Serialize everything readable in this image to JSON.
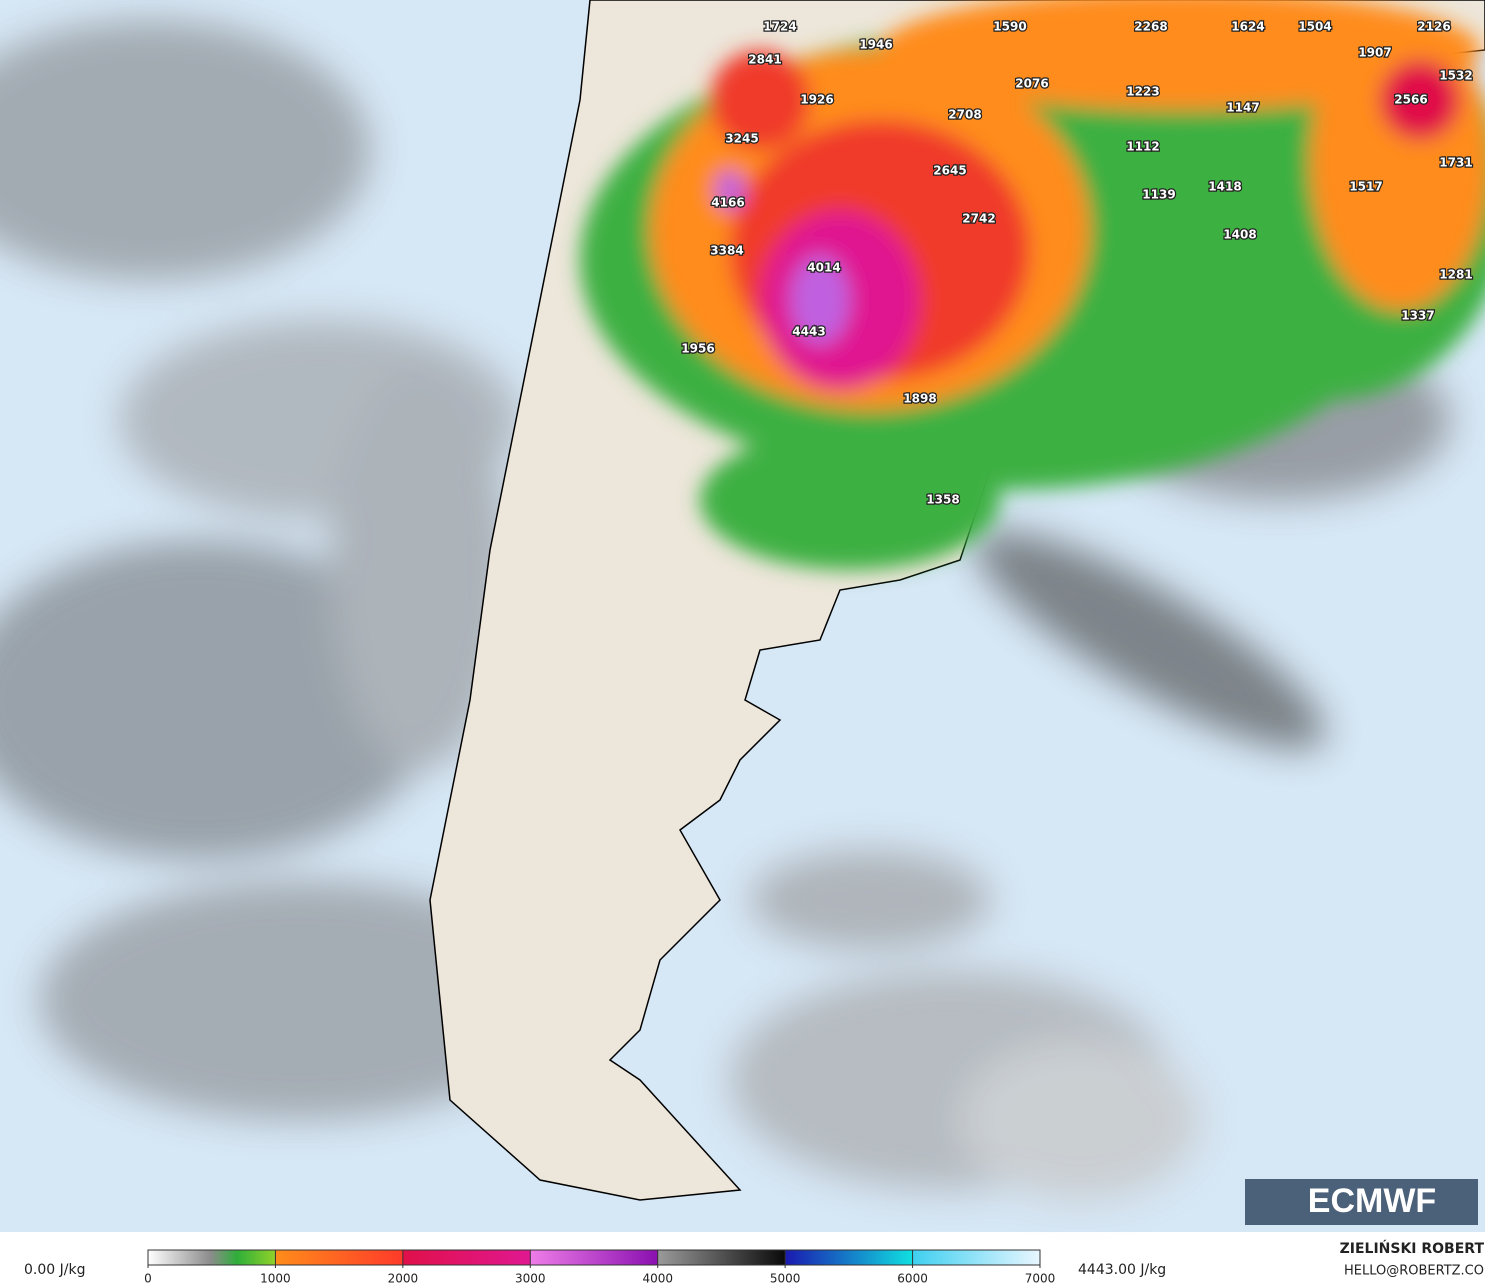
{
  "map_labels": [
    "1724",
    "1946",
    "1590",
    "2268",
    "1624",
    "1504",
    "2126",
    "2841",
    "1926",
    "2076",
    "1223",
    "1907",
    "1532",
    "2566",
    "3245",
    "2708",
    "1112",
    "1147",
    "1731",
    "4166",
    "2645",
    "1139",
    "1418",
    "1517",
    "3384",
    "4014",
    "2742",
    "1408",
    "1281",
    "4443",
    "1337",
    "1956",
    "1898",
    "1358"
  ],
  "colorbar": {
    "ticks": [
      0,
      1000,
      2000,
      3000,
      4000,
      5000,
      6000,
      7000
    ]
  },
  "footer": {
    "min_label": "0.00 J/kg",
    "max_label": "4443.00 J/kg",
    "author": "ZIELIŃSKI ROBERT",
    "email": "HELLO@ROBERTZ.CO"
  },
  "logo": "ECMWF"
}
